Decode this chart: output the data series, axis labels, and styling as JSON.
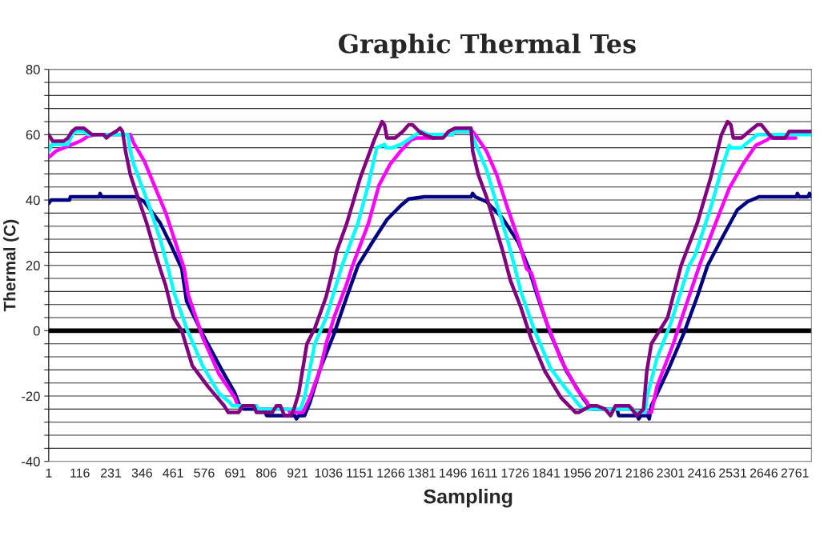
{
  "chart_data": {
    "type": "line",
    "title": "Graphic Thermal Tes",
    "xlabel": "Sampling",
    "ylabel": "Thermal (C)",
    "xlim": [
      1,
      2822
    ],
    "xticks": [
      1,
      116,
      231,
      346,
      461,
      576,
      691,
      806,
      921,
      1036,
      1151,
      1266,
      1381,
      1496,
      1611,
      1726,
      1841,
      1956,
      2071,
      2186,
      2301,
      2416,
      2531,
      2646,
      2761
    ],
    "ylim": [
      -40,
      80
    ],
    "yticks": [
      -40,
      {
        "value": -36,
        "label": null
      },
      {
        "value": -32,
        "label": null
      },
      {
        "value": -28,
        "label": null
      },
      {
        "value": -24,
        "label": null
      },
      -20,
      {
        "value": -16,
        "label": null
      },
      {
        "value": -12,
        "label": null
      },
      {
        "value": -8,
        "label": null
      },
      {
        "value": -4,
        "label": null
      },
      0,
      {
        "value": 4,
        "label": null
      },
      {
        "value": 8,
        "label": null
      },
      {
        "value": 12,
        "label": null
      },
      {
        "value": 16,
        "label": null
      },
      20,
      {
        "value": 24,
        "label": null
      },
      {
        "value": 28,
        "label": null
      },
      {
        "value": 32,
        "label": null
      },
      {
        "value": 36,
        "label": null
      },
      40,
      {
        "value": 44,
        "label": null
      },
      {
        "value": 48,
        "label": null
      },
      {
        "value": 52,
        "label": null
      },
      {
        "value": 56,
        "label": null
      },
      60,
      {
        "value": 64,
        "label": null
      },
      {
        "value": 68,
        "label": null
      },
      {
        "value": 72,
        "label": null
      },
      {
        "value": 76,
        "label": null
      },
      80
    ],
    "grid": "y",
    "marker": "none",
    "line_style": "solid",
    "ref_lines": [
      {
        "axis": "y",
        "value": 0,
        "color": "#000000"
      }
    ],
    "series": [
      {
        "color": "#000080",
        "x": [
          1,
          10,
          78,
          81,
          188,
          191,
          197,
          324,
          354,
          413,
          452,
          493,
          511,
          570,
          641,
          689,
          710,
          724,
          798,
          807,
          911,
          917,
          926,
          947,
          967,
          1006,
          1056,
          1104,
          1145,
          1205,
          1252,
          1303,
          1332,
          1391,
          1563,
          1569,
          1578,
          1620,
          1679,
          1738,
          1777,
          1807,
          1857,
          1916,
          1976,
          2005,
          2014,
          2103,
          2109,
          2177,
          2183,
          2192,
          2216,
          2222,
          2230,
          2290,
          2349,
          2400,
          2438,
          2489,
          2548,
          2586,
          2628,
          2767,
          2770,
          2776,
          2809,
          2815,
          2822
        ],
        "values": [
          39,
          40,
          40,
          41,
          41,
          42,
          41,
          41,
          39.5,
          33,
          26.4,
          19,
          9,
          -1,
          -12,
          -19,
          -23.5,
          -24,
          -24,
          -26,
          -26,
          -27,
          -26,
          -26,
          -22,
          -11.5,
          -1,
          10.5,
          20,
          28,
          34,
          38.3,
          40.3,
          41,
          41,
          42,
          41,
          39.5,
          34.5,
          27,
          19,
          11,
          -1,
          -12.4,
          -20.5,
          -23.7,
          -24,
          -24,
          -26,
          -26,
          -27,
          -26,
          -26,
          -27,
          -23,
          -12.4,
          -1,
          10.5,
          20,
          28,
          37,
          39.5,
          41,
          41,
          42,
          41,
          41,
          42,
          41
        ]
      },
      {
        "color": "#ff00ff",
        "x": [
          1,
          28,
          57,
          87,
          117,
          146,
          176,
          303,
          315,
          354,
          392,
          434,
          472,
          502,
          517,
          570,
          629,
          689,
          701,
          769,
          775,
          887,
          893,
          941,
          967,
          1006,
          1027,
          1056,
          1104,
          1125,
          1184,
          1222,
          1264,
          1303,
          1341,
          1362,
          1430,
          1436,
          1495,
          1504,
          1569,
          1578,
          1620,
          1658,
          1697,
          1738,
          1768,
          1786,
          1836,
          1896,
          1955,
          1993,
          2005,
          2162,
          2168,
          2230,
          2251,
          2311,
          2349,
          2408,
          2468,
          2518,
          2569,
          2616,
          2658,
          2666,
          2764
        ],
        "values": [
          53,
          55,
          56,
          57,
          58,
          59.5,
          60,
          60,
          57.5,
          52,
          44.4,
          36,
          26.4,
          19,
          11,
          -2,
          -13,
          -20.5,
          -23,
          -23,
          -24,
          -24,
          -25,
          -25,
          -20.5,
          -11.5,
          -4,
          4,
          14.5,
          20,
          33,
          44.4,
          51,
          55,
          58.4,
          59,
          59,
          60,
          60,
          61,
          61,
          60,
          55,
          47.7,
          37.8,
          28,
          19,
          17.7,
          4,
          -9,
          -18,
          -22,
          -24,
          -24,
          -25,
          -25,
          -17,
          -4,
          5.5,
          20,
          33,
          43.6,
          51,
          56.7,
          58.4,
          59,
          59
        ]
      },
      {
        "color": "#00ffff",
        "x": [
          1,
          13,
          72,
          87,
          102,
          131,
          146,
          294,
          300,
          315,
          333,
          374,
          413,
          443,
          463,
          511,
          570,
          629,
          671,
          680,
          769,
          775,
          932,
          947,
          985,
          1027,
          1086,
          1145,
          1184,
          1214,
          1243,
          1249,
          1273,
          1303,
          1341,
          1377,
          1406,
          1495,
          1501,
          1563,
          1578,
          1620,
          1658,
          1697,
          1726,
          1747,
          1798,
          1857,
          1916,
          1955,
          1976,
          2162,
          2168,
          2207,
          2213,
          2251,
          2302,
          2370,
          2391,
          2450,
          2489,
          2518,
          2524,
          2563,
          2577,
          2607,
          2622,
          2822
        ],
        "values": [
          55,
          57,
          57,
          60,
          61,
          61,
          60,
          60,
          56,
          51,
          47,
          37.8,
          28,
          19,
          12,
          0.7,
          -10.7,
          -19,
          -22,
          -23,
          -23,
          -24,
          -24,
          -20.5,
          -4,
          4,
          20,
          33,
          45,
          56,
          57,
          56,
          56,
          57,
          59,
          61,
          60,
          60,
          61,
          61,
          57.5,
          49.3,
          38.7,
          28,
          19,
          12,
          0,
          -11.5,
          -18,
          -22,
          -24,
          -24,
          -25,
          -25,
          -20.5,
          -8.3,
          2.3,
          20,
          23,
          37.8,
          49.3,
          56.7,
          56,
          56,
          57,
          59,
          60,
          60
        ]
      },
      {
        "color": "#800080",
        "x": [
          1,
          16,
          57,
          72,
          87,
          102,
          131,
          146,
          161,
          205,
          214,
          229,
          250,
          265,
          274,
          285,
          303,
          333,
          363,
          392,
          413,
          434,
          463,
          493,
          532,
          591,
          650,
          665,
          704,
          718,
          760,
          769,
          828,
          843,
          858,
          873,
          896,
          908,
          926,
          956,
          985,
          1027,
          1056,
          1065,
          1104,
          1154,
          1205,
          1234,
          1243,
          1252,
          1282,
          1311,
          1332,
          1347,
          1371,
          1391,
          1421,
          1460,
          1480,
          1504,
          1563,
          1569,
          1590,
          1620,
          1649,
          1679,
          1697,
          1709,
          1747,
          1786,
          1836,
          1896,
          1949,
          1961,
          2005,
          2029,
          2059,
          2079,
          2097,
          2148,
          2177,
          2201,
          2213,
          2230,
          2290,
          2340,
          2400,
          2450,
          2489,
          2512,
          2524,
          2533,
          2563,
          2592,
          2622,
          2637,
          2666,
          2681,
          2725,
          2740,
          2822
        ],
        "values": [
          60,
          58,
          58,
          59,
          61,
          62,
          62,
          61,
          60,
          60,
          59,
          60,
          61,
          62,
          61,
          55,
          47.7,
          40.3,
          33,
          24.7,
          19,
          13.7,
          4,
          0,
          -10.7,
          -17.2,
          -23,
          -25,
          -25,
          -23,
          -23,
          -25,
          -25,
          -23,
          -23,
          -26,
          -26,
          -24,
          -19,
          -4,
          0.7,
          10.4,
          20,
          24,
          33,
          47,
          58.4,
          64,
          63,
          59,
          59,
          61,
          63,
          63,
          61,
          60,
          59,
          59,
          61,
          62,
          62,
          55,
          47.7,
          41,
          33,
          24.7,
          19,
          15.3,
          7.2,
          -2.6,
          -12.4,
          -20.5,
          -25,
          -25,
          -23,
          -23,
          -24,
          -26,
          -23,
          -23,
          -26,
          -24,
          -12.4,
          -4,
          4,
          20,
          33,
          47,
          60,
          64,
          63,
          59,
          59,
          61,
          63,
          63,
          60,
          59,
          59,
          61,
          61
        ]
      }
    ]
  }
}
